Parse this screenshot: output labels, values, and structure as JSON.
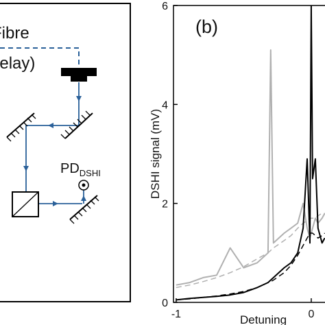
{
  "diagram": {
    "fibre": "Fibre",
    "delay": "(delay)",
    "detector": "PD",
    "detector_sub": "DSHI"
  },
  "chart_data": {
    "type": "line",
    "panel_label": "(b)",
    "ylabel": "DSHI signal (mV)",
    "xlabel": "Detuning",
    "x": [
      -1,
      -0.9,
      -0.8,
      -0.7,
      -0.6,
      -0.5,
      -0.4,
      -0.32,
      -0.3,
      -0.28,
      -0.2,
      -0.15,
      -0.1,
      -0.06,
      -0.03,
      -0.01,
      0,
      0.01,
      0.03,
      0.05,
      0.08,
      0.1
    ],
    "series": [
      {
        "color": "#b0b0b0",
        "dashed": false,
        "values": [
          0.35,
          0.4,
          0.5,
          0.55,
          1.1,
          0.7,
          0.8,
          1.0,
          5.1,
          1.2,
          1.4,
          1.5,
          1.6,
          2.0,
          1.5,
          1.3,
          1.4,
          1.5,
          1.7,
          1.6,
          1.7,
          1.8
        ]
      },
      {
        "color": "#b0b0b0",
        "dashed": true,
        "values": [
          0.3,
          0.35,
          0.42,
          0.5,
          0.6,
          0.72,
          0.88,
          1.0,
          1.05,
          1.1,
          1.25,
          1.35,
          1.5,
          1.6,
          1.65,
          1.7,
          1.7,
          1.7,
          1.7,
          1.75,
          1.8,
          1.8
        ]
      },
      {
        "color": "#000000",
        "dashed": false,
        "values": [
          0.05,
          0.08,
          0.1,
          0.12,
          0.15,
          0.2,
          0.3,
          0.4,
          0.45,
          0.5,
          0.7,
          0.8,
          1.0,
          1.5,
          2.9,
          1.2,
          6,
          2.5,
          2.9,
          1.5,
          1.2,
          1.3
        ]
      },
      {
        "color": "#000000",
        "dashed": true,
        "values": [
          0.05,
          0.07,
          0.1,
          0.13,
          0.17,
          0.22,
          0.3,
          0.4,
          0.42,
          0.45,
          0.6,
          0.75,
          0.95,
          1.15,
          1.3,
          1.4,
          1.4,
          1.4,
          1.35,
          1.3,
          1.35,
          1.4
        ]
      }
    ],
    "xlim": [
      -1.02,
      0.1
    ],
    "ylim": [
      0,
      6
    ],
    "xticks": [
      -1,
      0
    ],
    "yticks": [
      0,
      2,
      4,
      6
    ]
  }
}
